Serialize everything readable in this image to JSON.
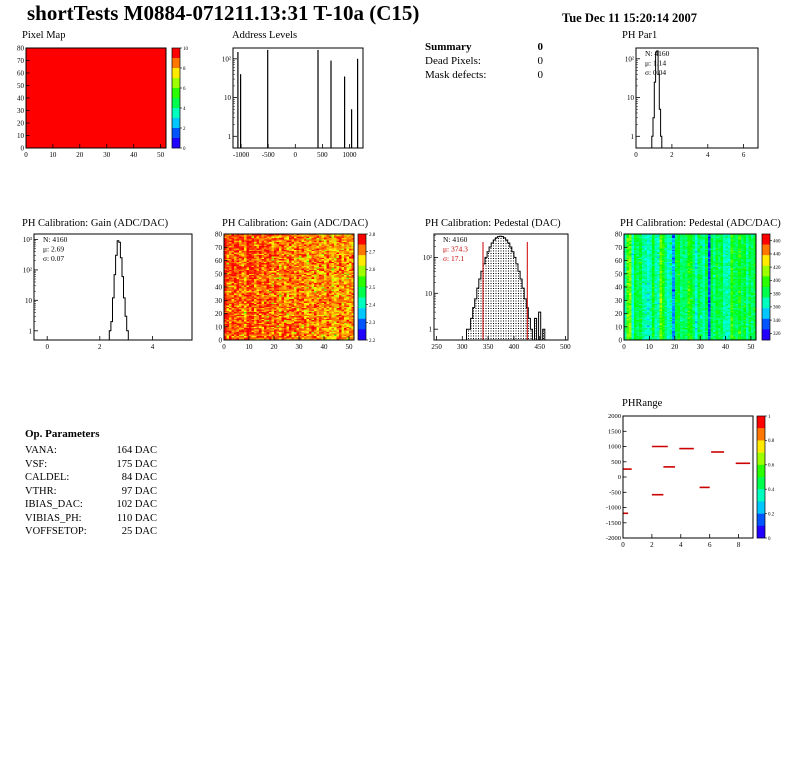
{
  "header": {
    "title": "shortTests M0884-071211.13:31 T-10a (C15)",
    "date": "Tue Dec 11 15:20:14 2007"
  },
  "summary": {
    "title": "Summary",
    "total": "0",
    "rows": [
      {
        "label": "Dead Pixels:",
        "value": "0"
      },
      {
        "label": "Mask defects:",
        "value": "0"
      }
    ]
  },
  "op_parameters": {
    "title": "Op. Parameters",
    "rows": [
      {
        "label": "VANA:",
        "value": "164 DAC"
      },
      {
        "label": "VSF:",
        "value": "175 DAC"
      },
      {
        "label": "CALDEL:",
        "value": "84 DAC"
      },
      {
        "label": "VTHR:",
        "value": "97 DAC"
      },
      {
        "label": "IBIAS_DAC:",
        "value": "102 DAC"
      },
      {
        "label": "VIBIAS_PH:",
        "value": "110 DAC"
      },
      {
        "label": "VOFFSETOP:",
        "value": "25 DAC"
      }
    ]
  },
  "chart_data": {
    "pixel_map": {
      "type": "heatmap",
      "title": "Pixel Map",
      "cols": 52,
      "rows": 80,
      "xlim": [
        0,
        52
      ],
      "ylim": [
        0,
        80
      ],
      "x_ticks": [
        0,
        10,
        20,
        30,
        40,
        50
      ],
      "y_ticks": [
        0,
        10,
        20,
        30,
        40,
        50,
        60,
        70,
        80
      ],
      "uniform_value": 10,
      "zmin": 0,
      "zmax": 10,
      "colorbar_ticks": [
        0,
        2,
        4,
        6,
        8,
        10
      ]
    },
    "address_levels": {
      "type": "spike-hist",
      "title": "Address Levels",
      "xlim": [
        -1150,
        1250
      ],
      "x_ticks": [
        -1000,
        -500,
        0,
        500,
        1000
      ],
      "ylog": true,
      "ymin": 0.5,
      "ymax": 190,
      "y_ticks": [
        1,
        10,
        100
      ],
      "spikes": [
        {
          "x": -1060,
          "h": 150
        },
        {
          "x": -1010,
          "h": 40
        },
        {
          "x": -510,
          "h": 170
        },
        {
          "x": 420,
          "h": 170
        },
        {
          "x": 660,
          "h": 90
        },
        {
          "x": 910,
          "h": 35
        },
        {
          "x": 1040,
          "h": 5
        },
        {
          "x": 1150,
          "h": 100
        }
      ]
    },
    "ph_par1": {
      "type": "hist",
      "title": "PH Par1",
      "stats": [
        {
          "text": "N: 4160",
          "color": "#000000"
        },
        {
          "text": "μ: 1.14",
          "color": "#000000"
        },
        {
          "text": "σ: 0.04",
          "color": "#000000"
        }
      ],
      "xlim": [
        0,
        6.8
      ],
      "x_ticks": [
        0,
        2,
        4,
        6
      ],
      "ylog": true,
      "ymin": 0.5,
      "ymax": 190,
      "y_ticks": [
        1,
        10,
        100
      ],
      "bins": {
        "start": 0.88,
        "width": 0.07,
        "counts": [
          1,
          3,
          25,
          150,
          160,
          40,
          5,
          1
        ]
      }
    },
    "gain_hist": {
      "type": "hist",
      "title": "PH Calibration: Gain (ADC/DAC)",
      "stats": [
        {
          "text": "N: 4160",
          "color": "#000000"
        },
        {
          "text": "μ: 2.69",
          "color": "#000000"
        },
        {
          "text": "σ: 0.07",
          "color": "#000000"
        }
      ],
      "xlim": [
        -0.5,
        5.5
      ],
      "x_ticks": [
        0,
        2,
        4
      ],
      "ylog": true,
      "ymin": 0.5,
      "ymax": 1500,
      "y_ticks": [
        1,
        10,
        100,
        1000
      ],
      "bins": {
        "start": 2.36,
        "width": 0.06,
        "counts": [
          1,
          2,
          12,
          70,
          300,
          900,
          800,
          250,
          60,
          12,
          3,
          1
        ]
      }
    },
    "gain_map": {
      "type": "heatmap",
      "title": "PH Calibration: Gain (ADC/DAC)",
      "cols": 52,
      "rows": 80,
      "xlim": [
        0,
        52
      ],
      "ylim": [
        0,
        80
      ],
      "x_ticks": [
        0,
        10,
        20,
        30,
        40,
        50
      ],
      "y_ticks": [
        0,
        10,
        20,
        30,
        40,
        50,
        60,
        70,
        80
      ],
      "zmin": 2.2,
      "zmax": 2.8,
      "z_mean": 2.69,
      "z_sigma": 0.07,
      "colorbar_ticks": [
        2.2,
        2.3,
        2.4,
        2.5,
        2.6,
        2.7,
        2.8
      ],
      "generator": {
        "seed": 7,
        "mean": 2.76,
        "sigma": 0.05,
        "col_sigma": 0.015,
        "grad": -0.06
      }
    },
    "pedestal_hist": {
      "type": "hist",
      "title": "PH Calibration: Pedestal (DAC)",
      "stats": [
        {
          "text": "N: 4160",
          "color": "#000000"
        },
        {
          "text": "μ: 374.3",
          "color": "#cc0000"
        },
        {
          "text": "σ: 17.1",
          "color": "#cc0000"
        }
      ],
      "xlim": [
        245,
        505
      ],
      "x_ticks": [
        250,
        300,
        350,
        400,
        450,
        500
      ],
      "ylog": true,
      "ymin": 0.5,
      "ymax": 450,
      "y_ticks": [
        1,
        10,
        100
      ],
      "fill": "dotted",
      "vlines": [
        {
          "x": 340,
          "color": "#cc0000"
        },
        {
          "x": 426,
          "color": "#cc0000"
        }
      ],
      "bins": {
        "start": 308,
        "width": 4,
        "counts": [
          1,
          1,
          2,
          4,
          7,
          14,
          25,
          41,
          66,
          100,
          144,
          196,
          252,
          306,
          351,
          380,
          390,
          380,
          351,
          306,
          252,
          196,
          144,
          100,
          66,
          41,
          25,
          14,
          7,
          4,
          2,
          1,
          0,
          2,
          0,
          3,
          0,
          1
        ]
      }
    },
    "pedestal_map": {
      "type": "heatmap",
      "title": "PH Calibration: Pedestal (ADC/DAC)",
      "cols": 52,
      "rows": 80,
      "xlim": [
        0,
        52
      ],
      "ylim": [
        0,
        80
      ],
      "x_ticks": [
        0,
        10,
        20,
        30,
        40,
        50
      ],
      "y_ticks": [
        0,
        10,
        20,
        30,
        40,
        50,
        60,
        70,
        80
      ],
      "zmin": 310,
      "zmax": 470,
      "z_mean": 374,
      "z_sigma": 17,
      "colorbar_ticks": [
        320,
        340,
        360,
        380,
        400,
        420,
        440,
        460
      ],
      "generator": {
        "seed": 13,
        "mean": 376,
        "sigma": 7,
        "col_sigma": 13,
        "grad": 0
      },
      "special_cols": [
        {
          "col": 33,
          "value": 328
        }
      ]
    },
    "ph_range": {
      "type": "segments",
      "title": "PHRange",
      "xlim": [
        0,
        9
      ],
      "x_ticks": [
        0,
        2,
        4,
        6,
        8
      ],
      "ylim": [
        -2000,
        2000
      ],
      "y_ticks": [
        2000,
        1500,
        1000,
        500,
        0,
        -500,
        -1000,
        -1500,
        -2000
      ],
      "zmin": 0,
      "zmax": 1,
      "colorbar_ticks": [
        0,
        0.2,
        0.4,
        0.6,
        0.8,
        1
      ],
      "color": "#cc0000",
      "segments": [
        {
          "x1": 2.0,
          "x2": 3.1,
          "y": 1000
        },
        {
          "x1": 3.9,
          "x2": 4.9,
          "y": 930
        },
        {
          "x1": 6.1,
          "x2": 7.0,
          "y": 820
        },
        {
          "x1": 7.8,
          "x2": 8.8,
          "y": 450
        },
        {
          "x1": 0.0,
          "x2": 0.6,
          "y": 260
        },
        {
          "x1": 2.8,
          "x2": 3.6,
          "y": 330
        },
        {
          "x1": 5.3,
          "x2": 6.0,
          "y": -340
        },
        {
          "x1": 2.0,
          "x2": 2.8,
          "y": -580
        },
        {
          "x1": 0.0,
          "x2": 0.35,
          "y": -1190
        }
      ]
    }
  }
}
